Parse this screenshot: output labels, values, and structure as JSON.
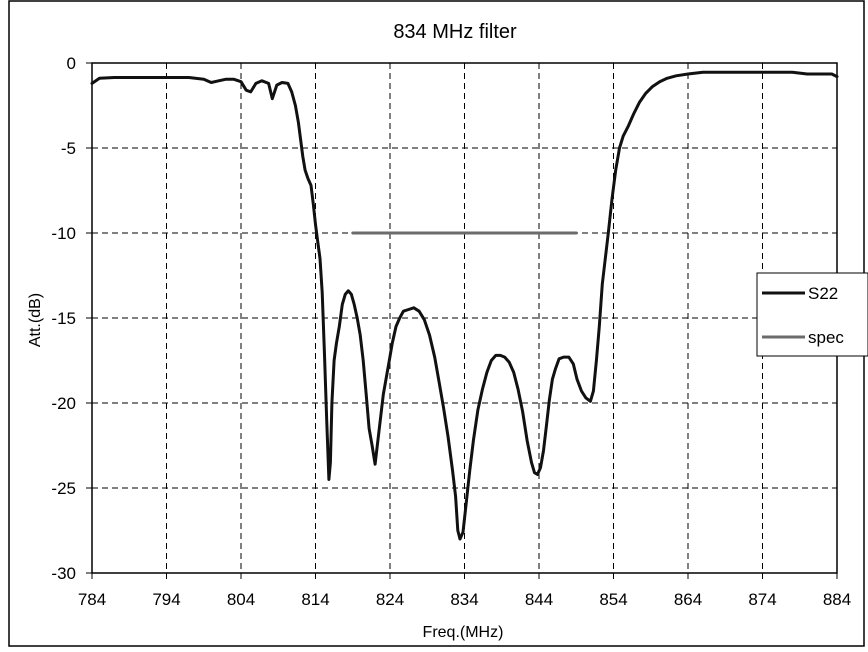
{
  "chart_data": {
    "type": "line",
    "title": "834 MHz filter",
    "xlabel": "Freq.(MHz)",
    "ylabel": "Att.(dB)",
    "xlim": [
      784,
      884
    ],
    "ylim": [
      -30,
      0
    ],
    "x_ticks": [
      "784",
      "794",
      "804",
      "814",
      "824",
      "834",
      "844",
      "854",
      "864",
      "874",
      "884"
    ],
    "y_ticks": [
      "0",
      "-5",
      "-10",
      "-15",
      "-20",
      "-25",
      "-30"
    ],
    "grid": true,
    "legend_position": "right",
    "series": [
      {
        "name": "S22",
        "color": "#111111",
        "points": [
          [
            784,
            -1.2
          ],
          [
            785,
            -0.9
          ],
          [
            787,
            -0.85
          ],
          [
            790,
            -0.85
          ],
          [
            794,
            -0.85
          ],
          [
            797,
            -0.85
          ],
          [
            799,
            -0.95
          ],
          [
            800,
            -1.15
          ],
          [
            801,
            -1.05
          ],
          [
            802,
            -0.95
          ],
          [
            803,
            -0.95
          ],
          [
            804,
            -1.1
          ],
          [
            804.7,
            -1.6
          ],
          [
            805.3,
            -1.7
          ],
          [
            806,
            -1.2
          ],
          [
            806.8,
            -1.05
          ],
          [
            807.7,
            -1.2
          ],
          [
            808.2,
            -2.1
          ],
          [
            808.8,
            -1.3
          ],
          [
            809.5,
            -1.15
          ],
          [
            810.3,
            -1.2
          ],
          [
            810.8,
            -1.7
          ],
          [
            811.3,
            -2.5
          ],
          [
            811.7,
            -3.5
          ],
          [
            812,
            -4.5
          ],
          [
            812.3,
            -5.5
          ],
          [
            812.6,
            -6.3
          ],
          [
            813,
            -6.8
          ],
          [
            813.4,
            -7.2
          ],
          [
            813.7,
            -8.3
          ],
          [
            814,
            -9.5
          ],
          [
            814.3,
            -10.5
          ],
          [
            814.6,
            -11.5
          ],
          [
            814.9,
            -13.5
          ],
          [
            815.2,
            -17
          ],
          [
            815.5,
            -21
          ],
          [
            815.8,
            -24.5
          ],
          [
            816,
            -23.5
          ],
          [
            816.2,
            -20
          ],
          [
            816.5,
            -17.5
          ],
          [
            816.8,
            -16.5
          ],
          [
            817.2,
            -15.5
          ],
          [
            817.6,
            -14.2
          ],
          [
            818,
            -13.6
          ],
          [
            818.4,
            -13.4
          ],
          [
            818.8,
            -13.6
          ],
          [
            819.2,
            -14.2
          ],
          [
            819.6,
            -15
          ],
          [
            820,
            -16
          ],
          [
            820.4,
            -17.5
          ],
          [
            820.8,
            -19.5
          ],
          [
            821.2,
            -21.5
          ],
          [
            821.6,
            -22.5
          ],
          [
            822,
            -23.6
          ],
          [
            822.3,
            -22.5
          ],
          [
            822.7,
            -21
          ],
          [
            823.1,
            -19.5
          ],
          [
            823.5,
            -18.5
          ],
          [
            823.9,
            -17.5
          ],
          [
            824.3,
            -16.5
          ],
          [
            824.8,
            -15.5
          ],
          [
            825.3,
            -15
          ],
          [
            825.8,
            -14.6
          ],
          [
            826.5,
            -14.5
          ],
          [
            827.2,
            -14.4
          ],
          [
            827.9,
            -14.6
          ],
          [
            828.6,
            -15.1
          ],
          [
            829.3,
            -16
          ],
          [
            830,
            -17.3
          ],
          [
            830.6,
            -18.8
          ],
          [
            831.2,
            -20.3
          ],
          [
            831.8,
            -22
          ],
          [
            832.4,
            -24
          ],
          [
            832.8,
            -25.5
          ],
          [
            833.1,
            -27.5
          ],
          [
            833.4,
            -28
          ],
          [
            833.8,
            -27.6
          ],
          [
            834.2,
            -26
          ],
          [
            834.7,
            -24
          ],
          [
            835.2,
            -22.2
          ],
          [
            835.8,
            -20.4
          ],
          [
            836.4,
            -19.2
          ],
          [
            837,
            -18.2
          ],
          [
            837.6,
            -17.5
          ],
          [
            838.2,
            -17.2
          ],
          [
            838.8,
            -17.2
          ],
          [
            839.4,
            -17.3
          ],
          [
            840,
            -17.6
          ],
          [
            840.6,
            -18.2
          ],
          [
            841.2,
            -19.2
          ],
          [
            841.8,
            -20.5
          ],
          [
            842.4,
            -22.2
          ],
          [
            843,
            -23.5
          ],
          [
            843.4,
            -24.1
          ],
          [
            843.8,
            -24.2
          ],
          [
            844.2,
            -23.8
          ],
          [
            844.6,
            -22.8
          ],
          [
            845,
            -21.3
          ],
          [
            845.4,
            -19.8
          ],
          [
            845.8,
            -18.6
          ],
          [
            846.2,
            -18
          ],
          [
            846.7,
            -17.4
          ],
          [
            847.3,
            -17.3
          ],
          [
            848,
            -17.3
          ],
          [
            848.6,
            -17.7
          ],
          [
            849.1,
            -18.6
          ],
          [
            849.7,
            -19.3
          ],
          [
            850.3,
            -19.7
          ],
          [
            850.9,
            -19.9
          ],
          [
            851.3,
            -19.3
          ],
          [
            851.7,
            -17.5
          ],
          [
            852.1,
            -15.5
          ],
          [
            852.5,
            -13
          ],
          [
            852.9,
            -11.5
          ],
          [
            853.3,
            -10
          ],
          [
            853.8,
            -8
          ],
          [
            854.3,
            -6.3
          ],
          [
            854.8,
            -5
          ],
          [
            855.3,
            -4.3
          ],
          [
            856,
            -3.7
          ],
          [
            856.7,
            -3
          ],
          [
            857.5,
            -2.3
          ],
          [
            858.3,
            -1.8
          ],
          [
            859.2,
            -1.4
          ],
          [
            860.2,
            -1.1
          ],
          [
            861.2,
            -0.9
          ],
          [
            862.4,
            -0.75
          ],
          [
            864,
            -0.65
          ],
          [
            866,
            -0.55
          ],
          [
            870,
            -0.55
          ],
          [
            874,
            -0.55
          ],
          [
            878,
            -0.55
          ],
          [
            880,
            -0.65
          ],
          [
            882,
            -0.65
          ],
          [
            883.3,
            -0.65
          ],
          [
            884,
            -0.8
          ]
        ]
      },
      {
        "name": "spec",
        "color": "#6b6b6b",
        "points": [
          [
            819,
            -10
          ],
          [
            849,
            -10
          ]
        ]
      }
    ]
  }
}
